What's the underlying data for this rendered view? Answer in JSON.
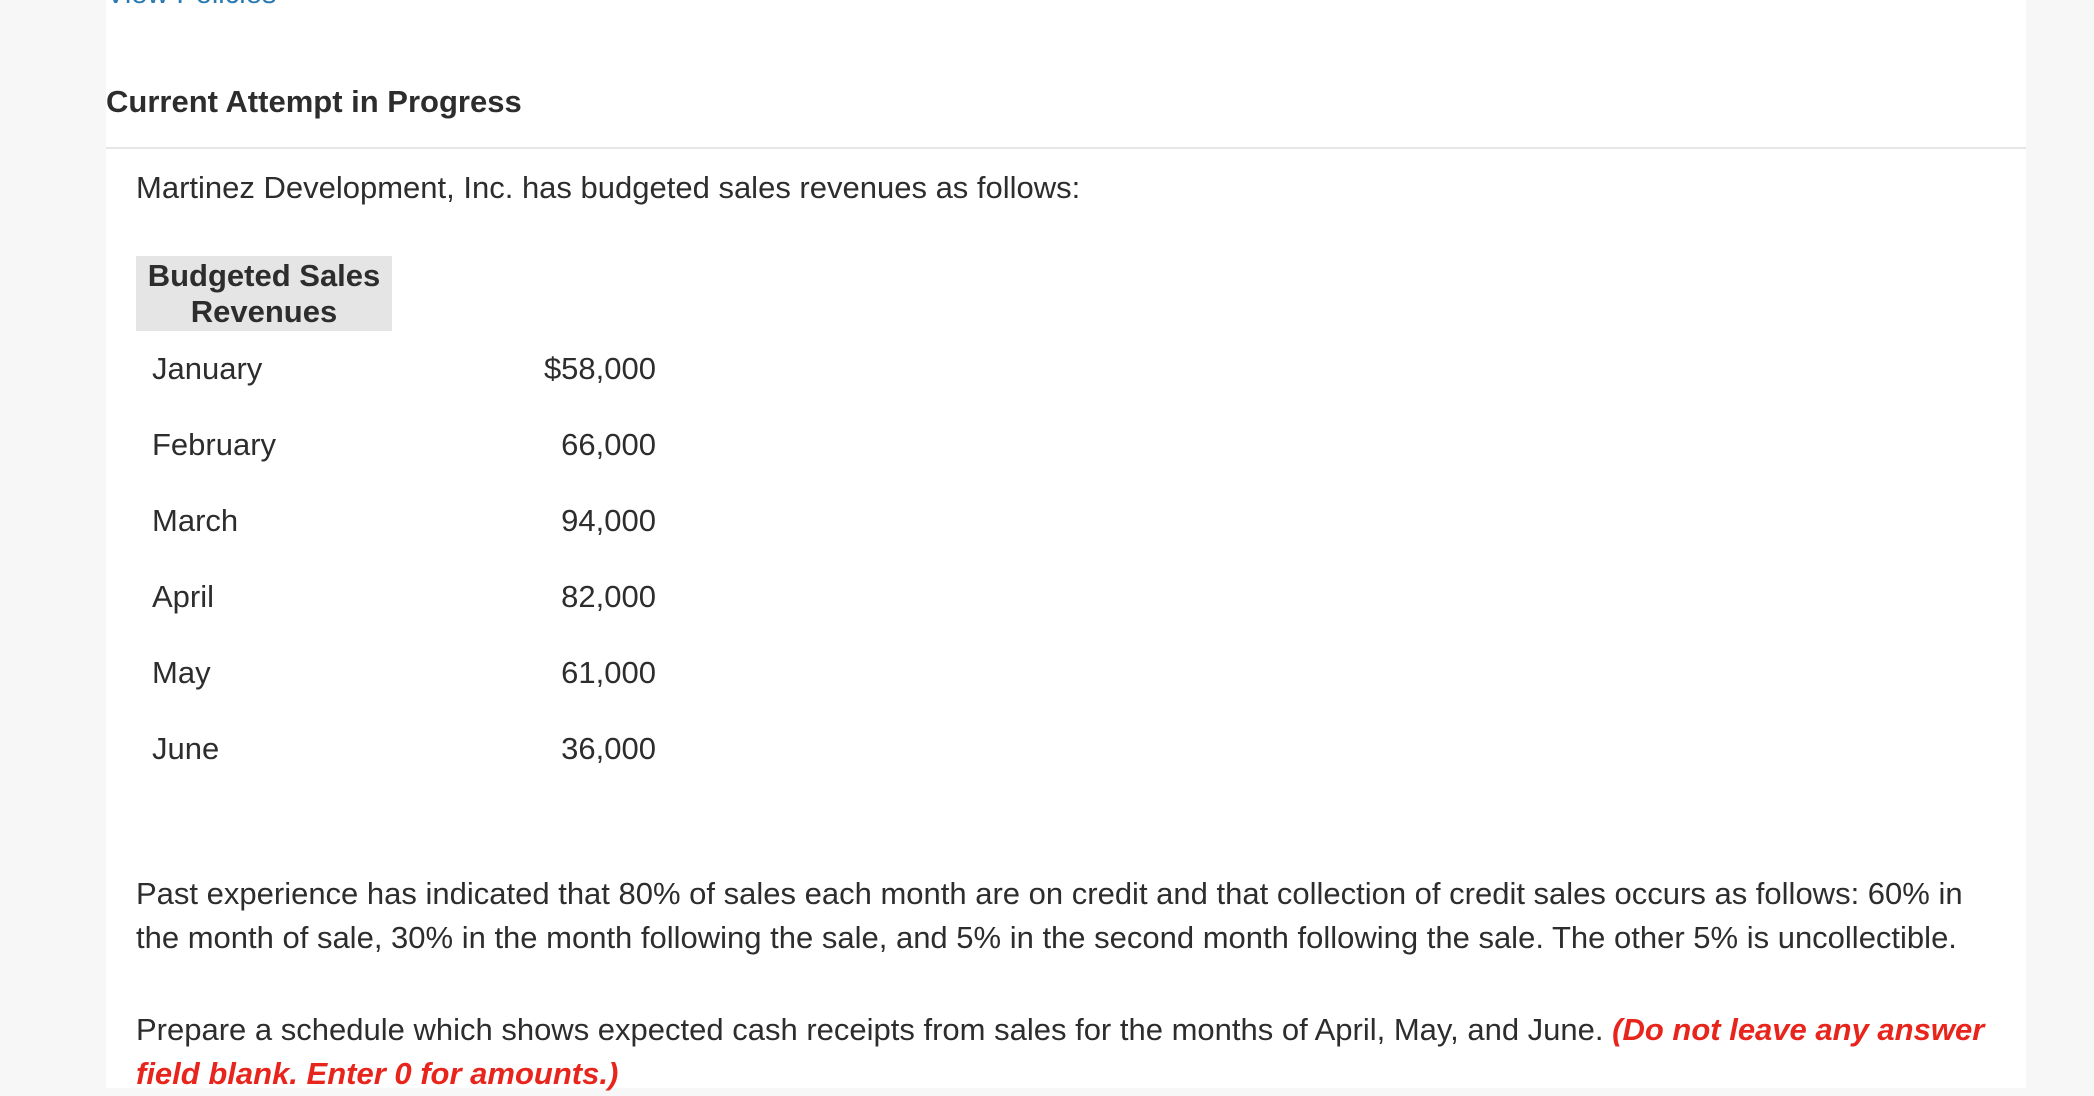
{
  "header": {
    "top_link": "View Policies",
    "attempt_title": "Current Attempt in Progress"
  },
  "problem": {
    "intro": "Martinez Development, Inc. has budgeted sales revenues as follows:",
    "table": {
      "header": "Budgeted Sales Revenues",
      "rows": [
        {
          "month": "January",
          "amount": "$58,000"
        },
        {
          "month": "February",
          "amount": "66,000"
        },
        {
          "month": "March",
          "amount": "94,000"
        },
        {
          "month": "April",
          "amount": "82,000"
        },
        {
          "month": "May",
          "amount": "61,000"
        },
        {
          "month": "June",
          "amount": "36,000"
        }
      ]
    },
    "paragraph": "Past experience has indicated that 80% of sales each month are on credit and that collection of credit sales occurs as follows: 60% in the month of sale, 30% in the month following the sale, and 5% in the second month following the sale. The other 5% is uncollectible.",
    "instruction": "Prepare a schedule which shows expected cash receipts from sales for the months of April, May, and June.",
    "instruction_note": "(Do not leave any answer field blank. Enter 0 for amounts.)",
    "note_color": "#e8251c",
    "link_color": "#2a7ab0"
  }
}
